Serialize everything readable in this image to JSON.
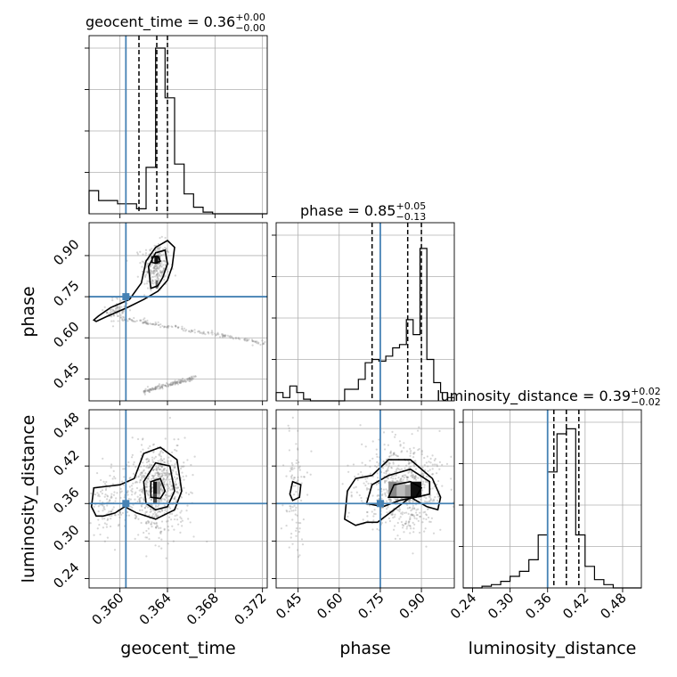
{
  "chart_data": {
    "type": "corner",
    "parameters": [
      "geocent_time",
      "phase",
      "luminosity_distance"
    ],
    "truths": {
      "geocent_time": 0.3605,
      "phase": 0.75,
      "luminosity_distance": 0.36
    },
    "truth_color": "#4682b4",
    "ranges": {
      "geocent_time": [
        0.3574,
        0.3724
      ],
      "phase": [
        0.37,
        1.02
      ],
      "luminosity_distance": [
        0.225,
        0.51
      ]
    },
    "ticks": {
      "geocent_time": [
        0.36,
        0.364,
        0.368,
        0.372
      ],
      "phase": [
        0.45,
        0.6,
        0.75,
        0.9
      ],
      "luminosity_distance": [
        0.24,
        0.3,
        0.36,
        0.42,
        0.48
      ]
    },
    "tick_labels": {
      "geocent_time": [
        "0.360",
        "0.364",
        "0.368",
        "0.372"
      ],
      "phase": [
        "0.45",
        "0.60",
        "0.75",
        "0.90"
      ],
      "luminosity_distance": [
        "0.24",
        "0.30",
        "0.36",
        "0.42",
        "0.48"
      ]
    },
    "titles": [
      {
        "param": "geocent_time",
        "main": "geocent_time = 0.36",
        "sup": "+0.00",
        "sub": "−0.00"
      },
      {
        "param": "phase",
        "main": "phase = 0.85",
        "sup": "+0.05",
        "sub": "−0.13"
      },
      {
        "param": "luminosity_distance",
        "main": "luminosity_distance = 0.39",
        "sup": "+0.02",
        "sub": "−0.02"
      }
    ],
    "quantiles": {
      "geocent_time": [
        0.3616,
        0.3631,
        0.364
      ],
      "phase": [
        0.72,
        0.85,
        0.9
      ],
      "luminosity_distance": [
        0.37,
        0.39,
        0.41
      ]
    },
    "histograms": {
      "geocent_time": {
        "edges": [
          0.3574,
          0.3582,
          0.359,
          0.3598,
          0.3606,
          0.3614,
          0.3622,
          0.363,
          0.3638,
          0.3646,
          0.3654,
          0.3662,
          0.367,
          0.3678,
          0.3686,
          0.3694,
          0.3702,
          0.371,
          0.3718,
          0.3724
        ],
        "counts": [
          0.14,
          0.08,
          0.08,
          0.06,
          0.06,
          0.03,
          0.28,
          1.0,
          0.7,
          0.3,
          0.12,
          0.04,
          0.01,
          0,
          0,
          0,
          0,
          0,
          0
        ]
      },
      "phase": {
        "edges": [
          0.37,
          0.395,
          0.42,
          0.445,
          0.47,
          0.495,
          0.52,
          0.545,
          0.57,
          0.595,
          0.62,
          0.645,
          0.67,
          0.695,
          0.72,
          0.745,
          0.77,
          0.795,
          0.82,
          0.845,
          0.87,
          0.895,
          0.92,
          0.945,
          0.97,
          0.995,
          1.02
        ],
        "counts": [
          0.05,
          0.02,
          0.09,
          0.05,
          0.01,
          0,
          0,
          0,
          0,
          0,
          0.07,
          0.07,
          0.13,
          0.23,
          0.25,
          0.24,
          0.27,
          0.32,
          0.34,
          0.49,
          0.4,
          0.92,
          0.25,
          0.11,
          0.05,
          0.02
        ]
      },
      "luminosity_distance": {
        "edges": [
          0.225,
          0.24,
          0.255,
          0.27,
          0.285,
          0.3,
          0.315,
          0.33,
          0.345,
          0.36,
          0.375,
          0.39,
          0.405,
          0.42,
          0.435,
          0.45,
          0.465,
          0.48,
          0.495,
          0.51
        ],
        "counts": [
          0,
          0,
          0.01,
          0.02,
          0.04,
          0.07,
          0.1,
          0.17,
          0.32,
          0.7,
          0.93,
          0.96,
          0.32,
          0.13,
          0.05,
          0.02,
          0,
          0,
          0
        ]
      }
    },
    "axis_labels": {
      "geocent_time": "geocent_time",
      "phase": "phase",
      "luminosity_distance": "luminosity_distance"
    },
    "grid": true
  }
}
